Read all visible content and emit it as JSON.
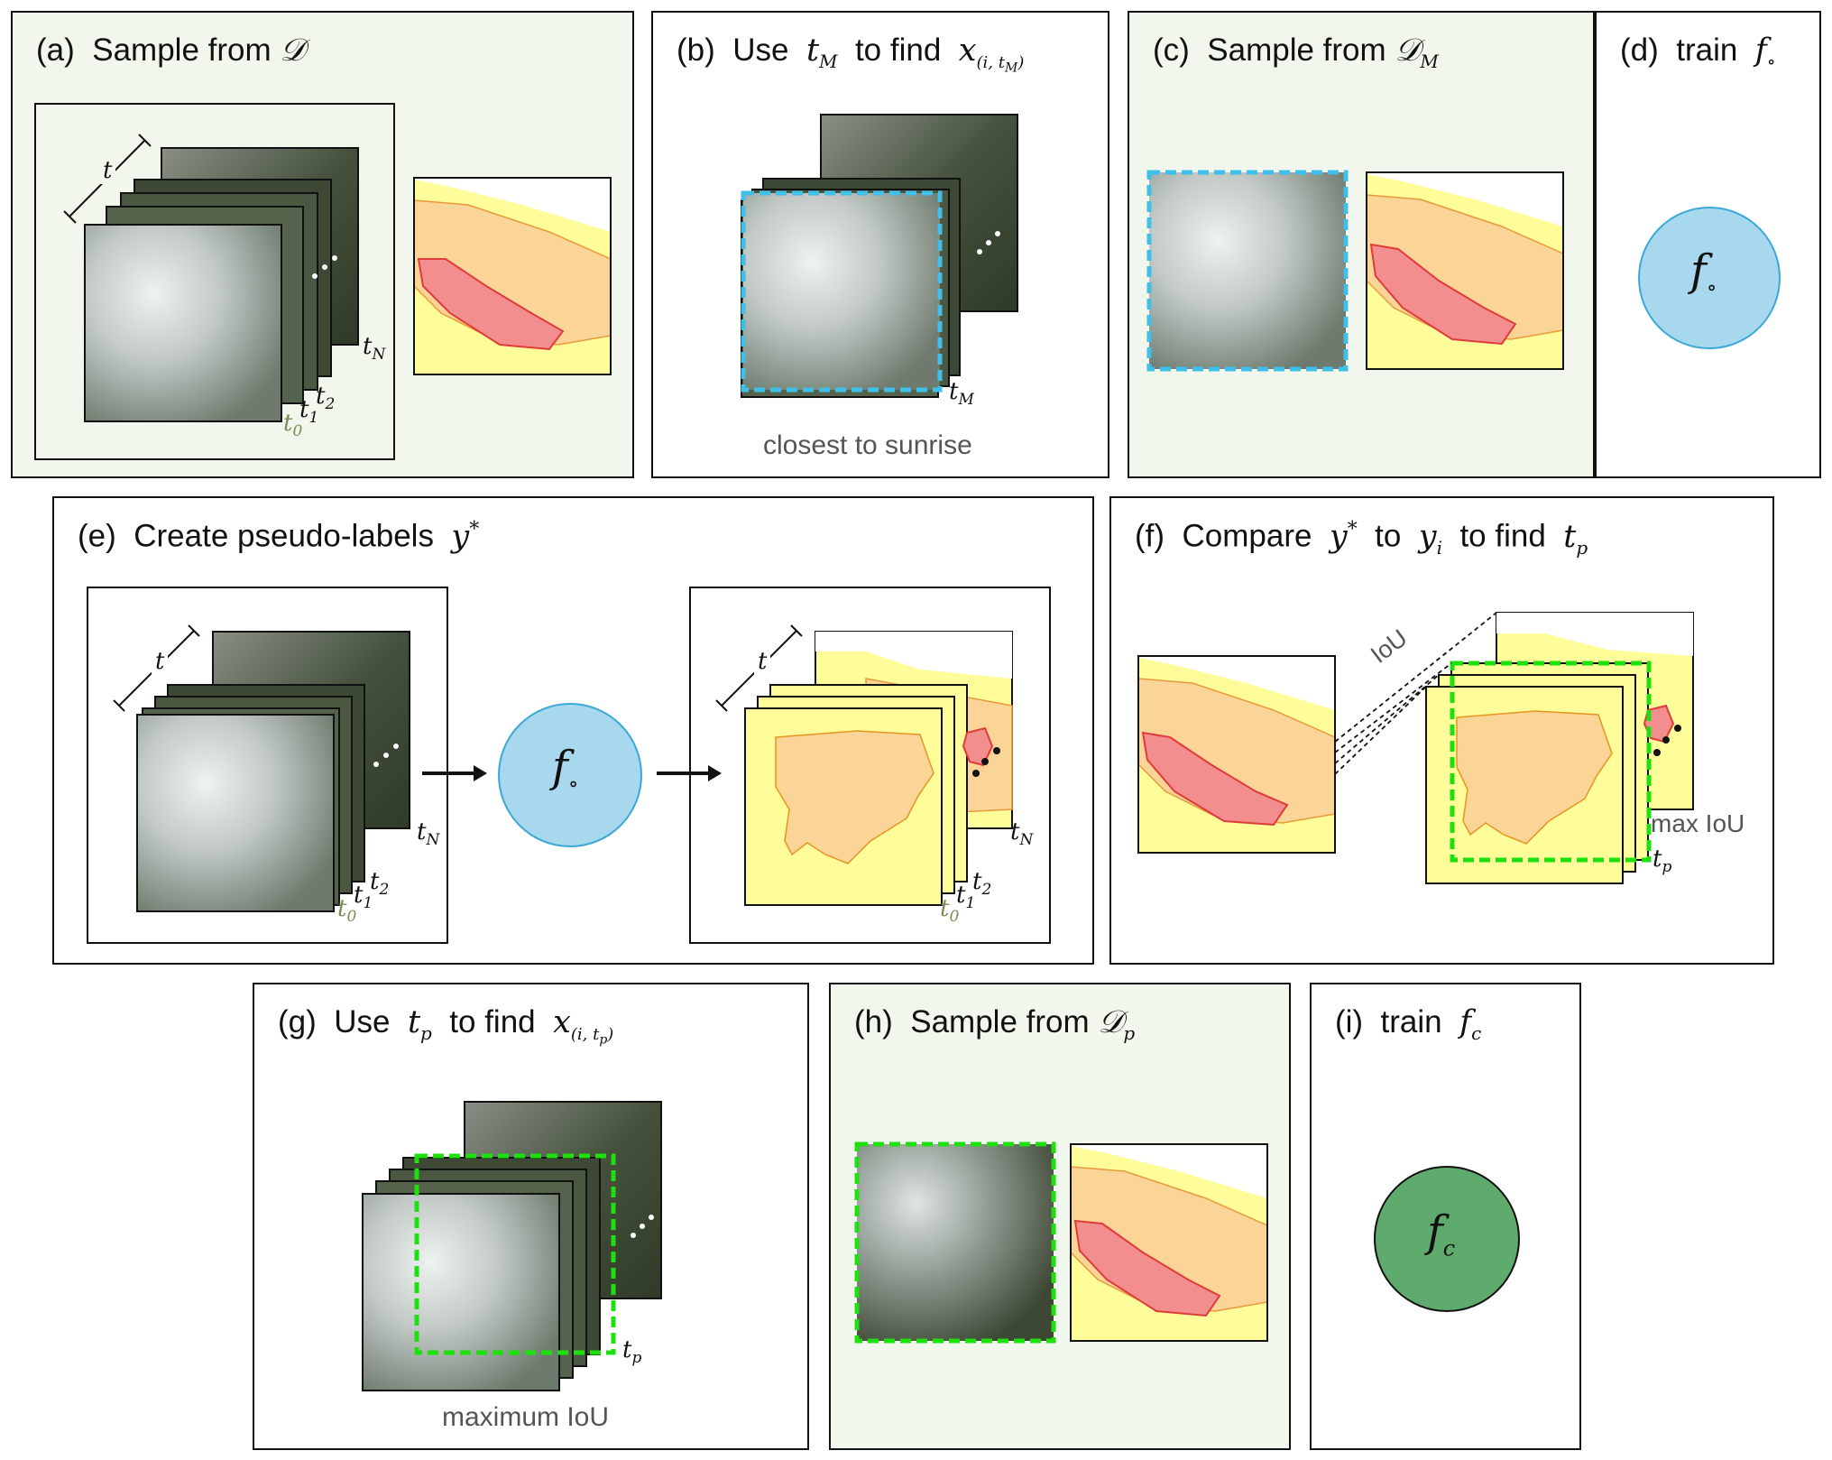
{
  "panels": {
    "a": {
      "letter": "(a)",
      "text": "Sample from",
      "sym": "𝒟",
      "t": "t",
      "t0": "t",
      "t0s": "0",
      "t1": "t",
      "t1s": "1",
      "t2": "t",
      "t2s": "2",
      "tN": "t",
      "tNs": "N"
    },
    "b": {
      "letter": "(b)",
      "w1": "Use",
      "tM": "t",
      "tMs": "M",
      "w2": "to find",
      "x": "x",
      "xs": "(i, t",
      "xss": "M",
      "xse": ")",
      "stack_label": "t",
      "stack_label_sub": "M",
      "caption": "closest to sunrise"
    },
    "c": {
      "letter": "(c)",
      "text": "Sample from",
      "sym": "𝒟",
      "sub": "M"
    },
    "d": {
      "letter": "(d)",
      "text": "train",
      "f": "f",
      "fs": "∘",
      "circle_f": "f",
      "circle_fs": "∘"
    },
    "e": {
      "letter": "(e)",
      "text": "Create pseudo-labels",
      "y": "y",
      "ys": "*",
      "t": "t",
      "circle_f": "f",
      "circle_fs": "∘",
      "t0": "t",
      "t0s": "0",
      "t1": "t",
      "t1s": "1",
      "t2": "t",
      "t2s": "2",
      "tN": "t",
      "tNs": "N"
    },
    "f": {
      "letter": "(f)",
      "w1": "Compare",
      "y": "y",
      "ys": "*",
      "w2": "to",
      "yi": "y",
      "yis": "i",
      "w3": "to find",
      "tp": "t",
      "tps": "p",
      "iou": "IoU",
      "max": "max IoU",
      "stack_label": "t",
      "stack_label_sub": "p"
    },
    "g": {
      "letter": "(g)",
      "w1": "Use",
      "tp": "t",
      "tps": "p",
      "w2": "to find",
      "x": "x",
      "xs": "(i, t",
      "xss": "p",
      "xse": ")",
      "stack_label": "t",
      "stack_label_sub": "p",
      "caption": "maximum IoU"
    },
    "h": {
      "letter": "(h)",
      "text": "Sample from",
      "sym": "𝒟",
      "sub": "p"
    },
    "i": {
      "letter": "(i)",
      "text": "train",
      "f": "f",
      "fs": "c",
      "circle_f": "f",
      "circle_fs": "c"
    }
  },
  "colors": {
    "panel_green": "#f1f7ed",
    "mask_yellow": "#fefd9a",
    "mask_orange": "#fbd497",
    "mask_red": "#f28e8e",
    "circle_blue": "#a8d8ee",
    "circle_green": "#5fab6e",
    "dash_blue": "#40bfe8",
    "dash_green": "#1ee00e"
  }
}
